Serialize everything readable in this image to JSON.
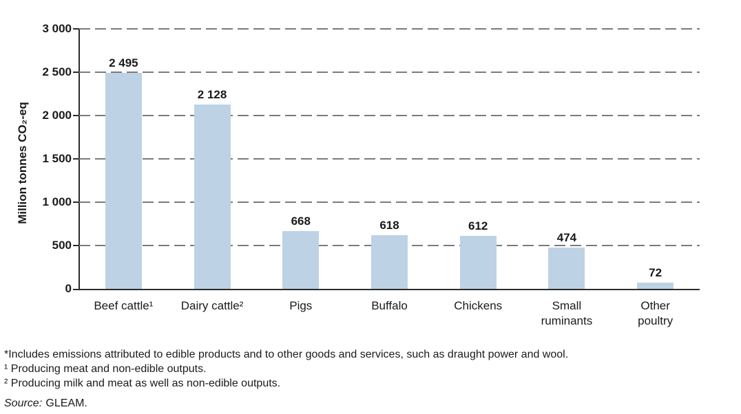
{
  "chart_data": {
    "type": "bar",
    "title": "",
    "categories": [
      "Beef cattle¹",
      "Dairy cattle²",
      "Pigs",
      "Buffalo",
      "Chickens",
      "Small\nruminants",
      "Other\npoultry"
    ],
    "values": [
      2495,
      2128,
      668,
      618,
      612,
      474,
      72
    ],
    "value_labels": [
      "2 495",
      "2 128",
      "668",
      "618",
      "612",
      "474",
      "72"
    ],
    "xlabel": "",
    "ylabel": "Million tonnes CO₂-eq",
    "ylim": [
      0,
      3000
    ],
    "yticks": [
      0,
      500,
      1000,
      1500,
      2000,
      2500,
      3000
    ],
    "ytick_labels": [
      "0",
      "500",
      "1 000",
      "1 500",
      "2 000",
      "2 500",
      "3 000"
    ],
    "grid": "horizontal-dashed",
    "legend": "none",
    "bar_color": "#BDD2E4",
    "axis_color": "#2B2B2B",
    "gridline_color": "#7A7A7A"
  },
  "footnotes": [
    "*Includes emissions attributed to edible products and to other goods and services, such as draught power and wool.",
    "¹ Producing meat and non-edible outputs.",
    "² Producing milk and meat as well as non-edible outputs."
  ],
  "source": {
    "prefix": "Source:",
    "text": "GLEAM."
  }
}
